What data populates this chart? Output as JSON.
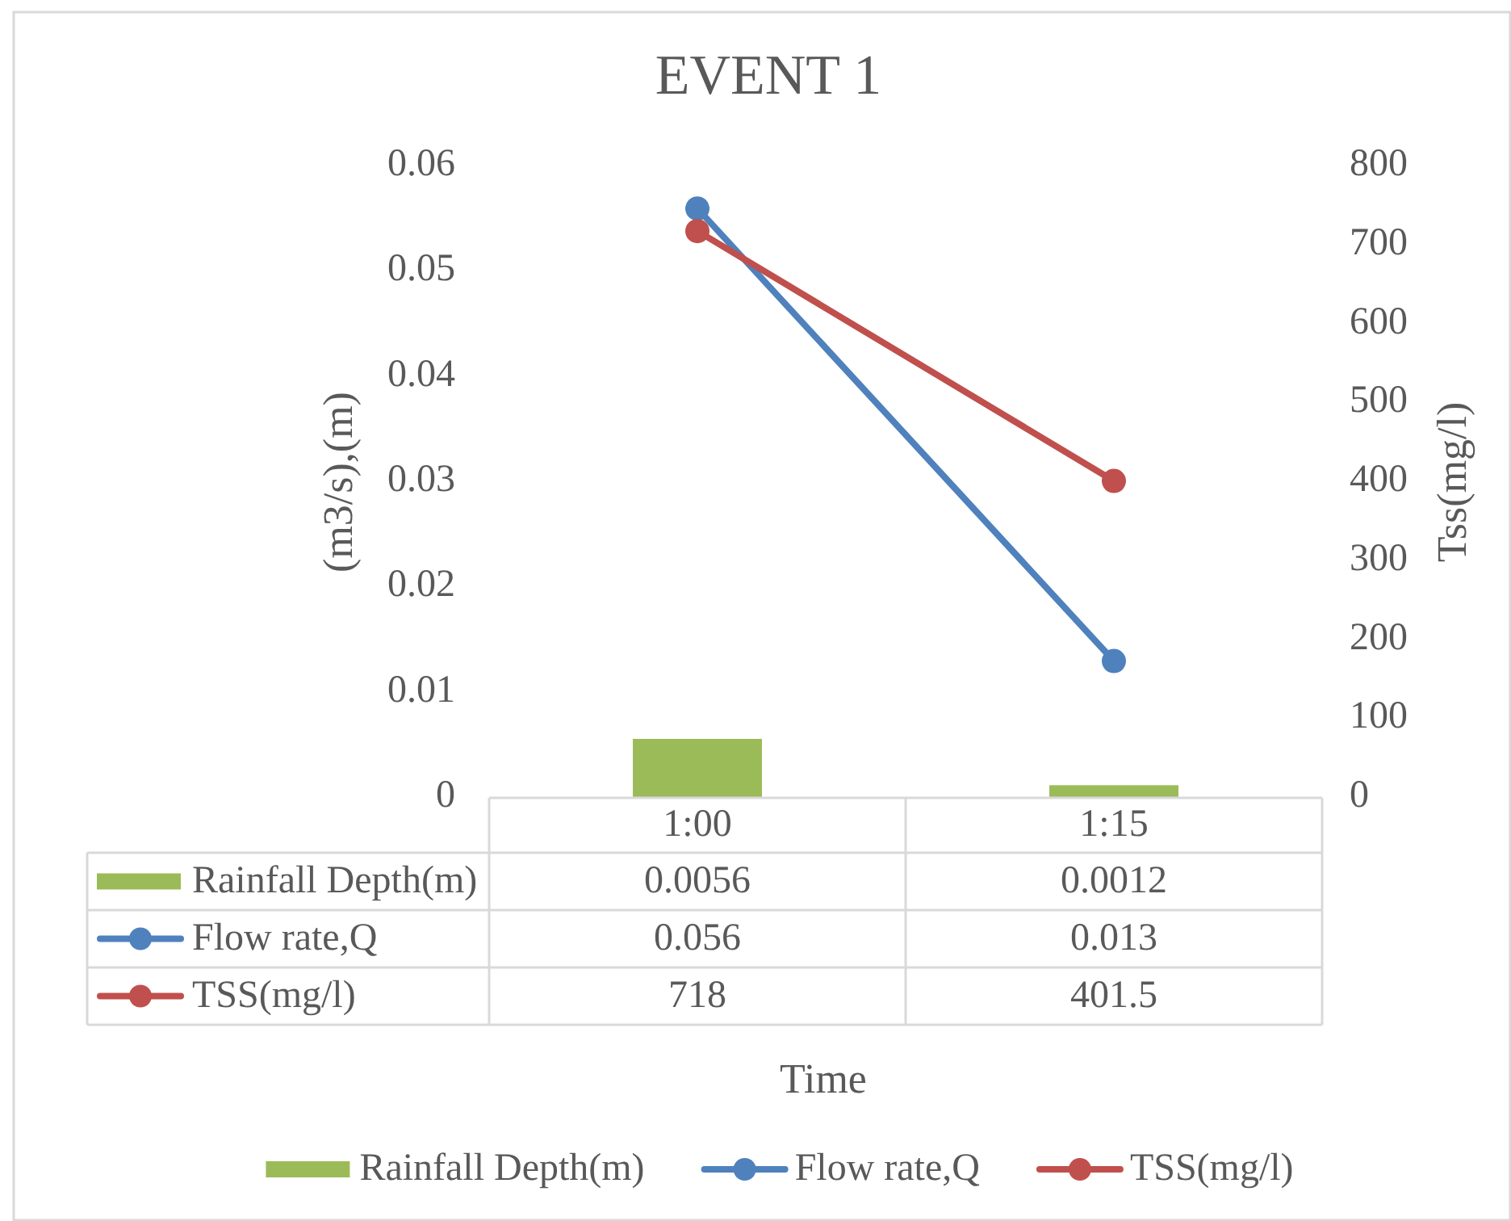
{
  "chart_data": {
    "type": "bar",
    "title": "EVENT 1",
    "xlabel": "Time",
    "ylabel": "(m3/s),(m)",
    "y2label": "Tss(mg/l)",
    "categories": [
      "1:00",
      "1:15"
    ],
    "series": [
      {
        "name": "Rainfall Depth(m)",
        "color": "#9bbb59",
        "values": [
          0.0056,
          0.0012
        ]
      },
      {
        "name": "Flow rate,Q",
        "type": "line",
        "color": "#4f81bd",
        "values": [
          0.056,
          0.013
        ]
      },
      {
        "name": "TSS(mg/l)",
        "type": "line",
        "color": "#c0504d",
        "axis": "y2",
        "values": [
          718,
          401.5
        ]
      }
    ],
    "ylim": [
      0,
      0.06
    ],
    "yticks": [
      0,
      0.01,
      0.02,
      0.03,
      0.04,
      0.05,
      0.06
    ],
    "y2lim": [
      0,
      800
    ],
    "y2ticks": [
      0,
      100,
      200,
      300,
      400,
      500,
      600,
      700,
      800
    ],
    "grid": false,
    "legend": "bottom",
    "marker": "circle",
    "data_labels": true
  }
}
